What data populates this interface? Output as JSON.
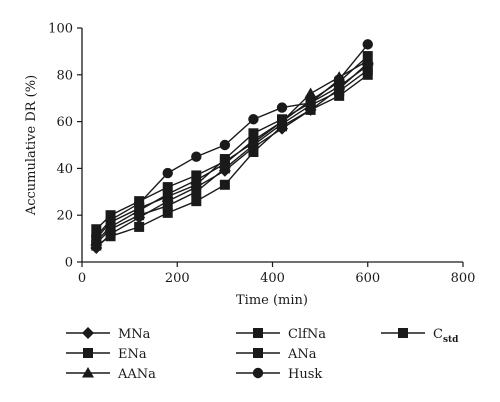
{
  "chart_data": {
    "type": "line",
    "xlabel": "Time (min)",
    "ylabel": "Accumulative DR (%)",
    "xlim": [
      0,
      800
    ],
    "ylim": [
      0,
      100
    ],
    "x_ticks": [
      0,
      200,
      400,
      600,
      800
    ],
    "y_ticks": [
      0,
      20,
      40,
      60,
      80,
      100
    ],
    "grid": false,
    "legend_position": "bottom",
    "x": [
      30,
      60,
      120,
      180,
      240,
      300,
      360,
      420,
      480,
      540,
      600
    ],
    "series": [
      {
        "name": "MNa",
        "marker": "diamond",
        "values": [
          6,
          12,
          19,
          26,
          32,
          39,
          49,
          57,
          65,
          74,
          85
        ]
      },
      {
        "name": "ENa",
        "marker": "square",
        "values": [
          14,
          20,
          26,
          32,
          37,
          43,
          51,
          60,
          69,
          77,
          88
        ]
      },
      {
        "name": "AANa",
        "marker": "triangle",
        "values": [
          9,
          15,
          22,
          29,
          35,
          42,
          52,
          60,
          72,
          79,
          86
        ]
      },
      {
        "name": "ClfNa",
        "marker": "square",
        "values": [
          8,
          14,
          20,
          24,
          30,
          40,
          50,
          59,
          67,
          73,
          82
        ]
      },
      {
        "name": "ANa",
        "marker": "square",
        "values": [
          10,
          17,
          23,
          28,
          33,
          44,
          55,
          61,
          68,
          75,
          84
        ]
      },
      {
        "name": "Husk",
        "marker": "circle",
        "values": [
          11,
          18,
          25,
          38,
          45,
          50,
          61,
          66,
          68,
          78,
          93
        ]
      },
      {
        "name": "C",
        "name_subscript": "std",
        "marker": "square",
        "values": [
          7,
          11,
          15,
          21,
          26,
          33,
          47,
          58,
          65,
          71,
          80
        ]
      }
    ]
  }
}
